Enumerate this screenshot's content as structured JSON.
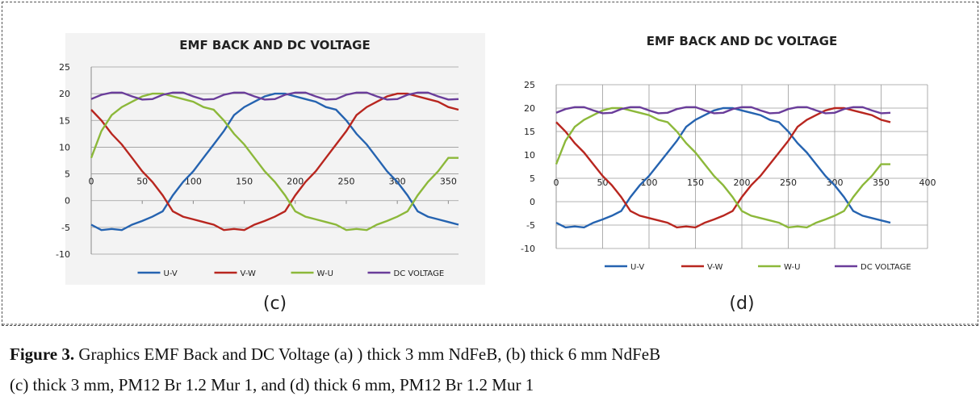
{
  "chart_data": [
    {
      "type": "line",
      "title": "EMF BACK AND DC VOLTAGE",
      "panel": "(c)",
      "x": [
        0,
        10,
        20,
        30,
        40,
        50,
        60,
        70,
        80,
        90,
        100,
        110,
        120,
        130,
        140,
        150,
        160,
        170,
        180,
        190,
        200,
        210,
        220,
        230,
        240,
        250,
        260,
        270,
        280,
        290,
        300,
        310,
        320,
        330,
        340,
        350,
        360
      ],
      "xlim": [
        0,
        360
      ],
      "xticks": [
        0,
        50,
        100,
        150,
        200,
        250,
        300,
        350
      ],
      "ylim": [
        -10,
        25
      ],
      "yticks": [
        -10,
        -5,
        0,
        5,
        10,
        15,
        20,
        25
      ],
      "grid": true,
      "xgrid": false,
      "series": [
        {
          "name": "U-V",
          "color": "#2563b0",
          "values": [
            -4.5,
            -5.5,
            -5.3,
            -5.5,
            -4.5,
            -3.8,
            -3,
            -2,
            1,
            3.5,
            5.5,
            8,
            10.5,
            13,
            16,
            17.5,
            18.5,
            19.5,
            20,
            20,
            19.5,
            19,
            18.5,
            17.5,
            17,
            15,
            12.5,
            10.5,
            8,
            5.5,
            3.5,
            1,
            -2,
            -3,
            -3.5,
            -4,
            -4.5
          ]
        },
        {
          "name": "V-W",
          "color": "#b8261f",
          "values": [
            17,
            15,
            12.5,
            10.5,
            8,
            5.5,
            3.5,
            1,
            -2,
            -3,
            -3.5,
            -4,
            -4.5,
            -5.5,
            -5.3,
            -5.5,
            -4.5,
            -3.8,
            -3,
            -2,
            1,
            3.5,
            5.5,
            8,
            10.5,
            13,
            16,
            17.5,
            18.5,
            19.5,
            20,
            20,
            19.5,
            19,
            18.5,
            17.5,
            17
          ]
        },
        {
          "name": "W-U",
          "color": "#8cb83a",
          "values": [
            8,
            13,
            16,
            17.5,
            18.5,
            19.5,
            20,
            20,
            19.5,
            19,
            18.5,
            17.5,
            17,
            15,
            12.5,
            10.5,
            8,
            5.5,
            3.5,
            1,
            -2,
            -3,
            -3.5,
            -4,
            -4.5,
            -5.5,
            -5.3,
            -5.5,
            -4.5,
            -3.8,
            -3,
            -2,
            1,
            3.5,
            5.5,
            8,
            8
          ]
        },
        {
          "name": "DC VOLTAGE",
          "color": "#6a3d9a",
          "values": [
            19,
            19.8,
            20.2,
            20.2,
            19.5,
            18.9,
            19,
            19.8,
            20.2,
            20.2,
            19.5,
            18.9,
            19,
            19.8,
            20.2,
            20.2,
            19.5,
            18.9,
            19,
            19.8,
            20.2,
            20.2,
            19.5,
            18.9,
            19,
            19.8,
            20.2,
            20.2,
            19.5,
            18.9,
            19,
            19.8,
            20.2,
            20.2,
            19.5,
            18.9,
            19
          ]
        }
      ]
    },
    {
      "type": "line",
      "title": "EMF BACK AND DC VOLTAGE",
      "panel": "(d)",
      "x": [
        0,
        10,
        20,
        30,
        40,
        50,
        60,
        70,
        80,
        90,
        100,
        110,
        120,
        130,
        140,
        150,
        160,
        170,
        180,
        190,
        200,
        210,
        220,
        230,
        240,
        250,
        260,
        270,
        280,
        290,
        300,
        310,
        320,
        330,
        340,
        350,
        360
      ],
      "xlim": [
        0,
        400
      ],
      "xticks": [
        0,
        50,
        100,
        150,
        200,
        250,
        300,
        350,
        400
      ],
      "ylim": [
        -10,
        25
      ],
      "yticks": [
        -10,
        -5,
        0,
        5,
        10,
        15,
        20,
        25
      ],
      "grid": true,
      "xgrid": true,
      "series": [
        {
          "name": "U-V",
          "color": "#2563b0",
          "values": [
            -4.5,
            -5.5,
            -5.3,
            -5.5,
            -4.5,
            -3.8,
            -3,
            -2,
            1,
            3.5,
            5.5,
            8,
            10.5,
            13,
            16,
            17.5,
            18.5,
            19.5,
            20,
            20,
            19.5,
            19,
            18.5,
            17.5,
            17,
            15,
            12.5,
            10.5,
            8,
            5.5,
            3.5,
            1,
            -2,
            -3,
            -3.5,
            -4,
            -4.5
          ]
        },
        {
          "name": "V-W",
          "color": "#b8261f",
          "values": [
            17,
            15,
            12.5,
            10.5,
            8,
            5.5,
            3.5,
            1,
            -2,
            -3,
            -3.5,
            -4,
            -4.5,
            -5.5,
            -5.3,
            -5.5,
            -4.5,
            -3.8,
            -3,
            -2,
            1,
            3.5,
            5.5,
            8,
            10.5,
            13,
            16,
            17.5,
            18.5,
            19.5,
            20,
            20,
            19.5,
            19,
            18.5,
            17.5,
            17
          ]
        },
        {
          "name": "W-U",
          "color": "#8cb83a",
          "values": [
            8,
            13,
            16,
            17.5,
            18.5,
            19.5,
            20,
            20,
            19.5,
            19,
            18.5,
            17.5,
            17,
            15,
            12.5,
            10.5,
            8,
            5.5,
            3.5,
            1,
            -2,
            -3,
            -3.5,
            -4,
            -4.5,
            -5.5,
            -5.3,
            -5.5,
            -4.5,
            -3.8,
            -3,
            -2,
            1,
            3.5,
            5.5,
            8,
            8
          ]
        },
        {
          "name": "DC VOLTAGE",
          "color": "#6a3d9a",
          "values": [
            19,
            19.8,
            20.2,
            20.2,
            19.5,
            18.9,
            19,
            19.8,
            20.2,
            20.2,
            19.5,
            18.9,
            19,
            19.8,
            20.2,
            20.2,
            19.5,
            18.9,
            19,
            19.8,
            20.2,
            20.2,
            19.5,
            18.9,
            19,
            19.8,
            20.2,
            20.2,
            19.5,
            18.9,
            19,
            19.8,
            20.2,
            20.2,
            19.5,
            18.9,
            19
          ]
        }
      ]
    }
  ],
  "caption": {
    "label": "Figure 3.",
    "lines": [
      " Graphics EMF Back and DC Voltage (a) ) thick 3 mm NdFeB, (b) thick 6 mm NdFeB",
      "(c) thick 3 mm, PM12 Br 1.2 Mur 1, and (d) thick 6 mm, PM12 Br 1.2 Mur 1"
    ]
  }
}
